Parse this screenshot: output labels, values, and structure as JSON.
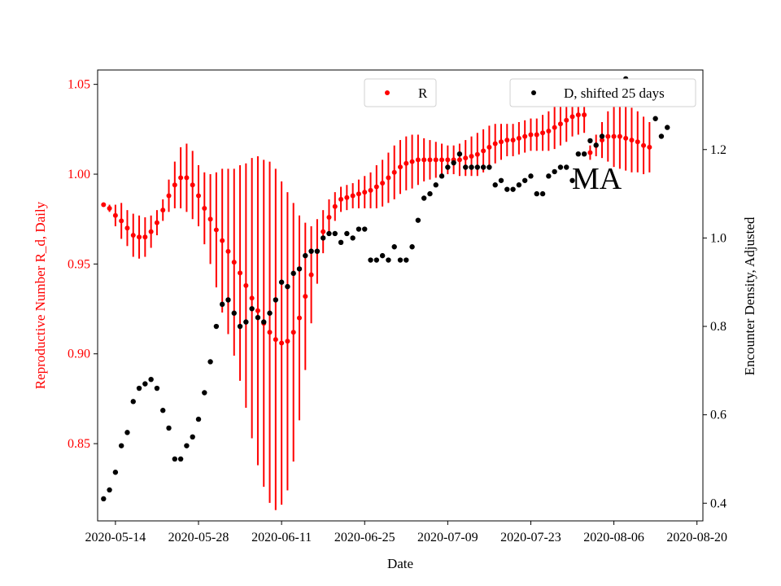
{
  "chart_data": {
    "type": "scatter",
    "annotation": "MA",
    "xlabel": "Date",
    "ylabel_left": "Reproductive Number R_d, Daily",
    "ylabel_right": "Encounter Density, Adjusted",
    "left_axis_color": "#ff0000",
    "xlim": [
      "2020-05-11",
      "2020-08-21"
    ],
    "xticks": [
      "2020-05-14",
      "2020-05-28",
      "2020-06-11",
      "2020-06-25",
      "2020-07-09",
      "2020-07-23",
      "2020-08-06",
      "2020-08-20"
    ],
    "ylim_left": [
      0.807,
      1.058
    ],
    "yticks_left": [
      "0.85",
      "0.90",
      "0.95",
      "1.00",
      "1.05"
    ],
    "ylim_right": [
      0.36,
      1.38
    ],
    "yticks_right": [
      "0.4",
      "0.6",
      "0.8",
      "1.0",
      "1.2"
    ],
    "legend": [
      {
        "label": "R",
        "color": "#ff0000",
        "placement": "top-center"
      },
      {
        "label": "D, shifted 25 days",
        "color": "#000000",
        "placement": "top-right"
      }
    ],
    "series": [
      {
        "name": "R",
        "color": "#ff0000",
        "axis": "left",
        "start_date": "2020-05-12",
        "values": [
          0.983,
          0.981,
          0.977,
          0.974,
          0.97,
          0.966,
          0.965,
          0.965,
          0.968,
          0.973,
          0.98,
          0.988,
          0.994,
          0.998,
          0.998,
          0.994,
          0.988,
          0.981,
          0.975,
          0.969,
          0.963,
          0.957,
          0.951,
          0.945,
          0.938,
          0.931,
          0.924,
          0.917,
          0.912,
          0.908,
          0.906,
          0.907,
          0.912,
          0.92,
          0.932,
          0.944,
          0.957,
          0.968,
          0.976,
          0.982,
          0.986,
          0.987,
          0.988,
          0.989,
          0.99,
          0.991,
          0.993,
          0.995,
          0.998,
          1.001,
          1.004,
          1.006,
          1.007,
          1.008,
          1.008,
          1.008,
          1.008,
          1.008,
          1.008,
          1.008,
          1.008,
          1.009,
          1.01,
          1.011,
          1.013,
          1.015,
          1.017,
          1.018,
          1.019,
          1.019,
          1.02,
          1.021,
          1.022,
          1.022,
          1.023,
          1.024,
          1.026,
          1.028,
          1.03,
          1.032,
          1.033,
          1.033,
          1.012,
          1.016,
          1.019,
          1.021,
          1.021,
          1.021,
          1.02,
          1.019,
          1.018,
          1.016,
          1.015
        ],
        "errors": [
          0.0,
          0.002,
          0.006,
          0.01,
          0.01,
          0.012,
          0.012,
          0.011,
          0.009,
          0.007,
          0.006,
          0.009,
          0.013,
          0.017,
          0.019,
          0.019,
          0.017,
          0.02,
          0.025,
          0.032,
          0.04,
          0.046,
          0.052,
          0.06,
          0.068,
          0.078,
          0.086,
          0.091,
          0.095,
          0.095,
          0.09,
          0.083,
          0.072,
          0.057,
          0.041,
          0.027,
          0.018,
          0.012,
          0.01,
          0.008,
          0.007,
          0.007,
          0.007,
          0.008,
          0.009,
          0.01,
          0.012,
          0.013,
          0.014,
          0.015,
          0.015,
          0.015,
          0.015,
          0.014,
          0.012,
          0.011,
          0.01,
          0.009,
          0.008,
          0.008,
          0.009,
          0.01,
          0.011,
          0.012,
          0.012,
          0.012,
          0.011,
          0.01,
          0.009,
          0.009,
          0.009,
          0.009,
          0.009,
          0.009,
          0.01,
          0.011,
          0.012,
          0.012,
          0.012,
          0.011,
          0.011,
          0.01,
          0.004,
          0.006,
          0.01,
          0.014,
          0.017,
          0.018,
          0.018,
          0.018,
          0.017,
          0.016,
          0.014
        ]
      },
      {
        "name": "D, shifted 25 days",
        "color": "#000000",
        "axis": "right",
        "start_date": "2020-05-12",
        "values": [
          0.41,
          0.43,
          0.47,
          0.53,
          0.56,
          0.63,
          0.66,
          0.67,
          0.68,
          0.66,
          0.61,
          0.57,
          0.5,
          0.5,
          0.53,
          0.55,
          0.59,
          0.65,
          0.72,
          0.8,
          0.85,
          0.86,
          0.83,
          0.8,
          0.81,
          0.84,
          0.82,
          0.81,
          0.83,
          0.86,
          0.9,
          0.89,
          0.92,
          0.93,
          0.96,
          0.97,
          0.97,
          1.0,
          1.01,
          1.01,
          0.99,
          1.01,
          1.0,
          1.02,
          1.02,
          0.95,
          0.95,
          0.96,
          0.95,
          0.98,
          0.95,
          0.95,
          0.98,
          1.04,
          1.09,
          1.1,
          1.12,
          1.14,
          1.16,
          1.17,
          1.19,
          1.16,
          1.16,
          1.16,
          1.16,
          1.16,
          1.12,
          1.13,
          1.11,
          1.11,
          1.12,
          1.13,
          1.14,
          1.1,
          1.1,
          1.14,
          1.15,
          1.16,
          1.16,
          1.13,
          1.19,
          1.19,
          1.22,
          1.21,
          1.23,
          1.31,
          1.35,
          1.34,
          1.36,
          1.35,
          1.35,
          1.34,
          1.32,
          1.27,
          1.23,
          1.25
        ]
      }
    ]
  }
}
